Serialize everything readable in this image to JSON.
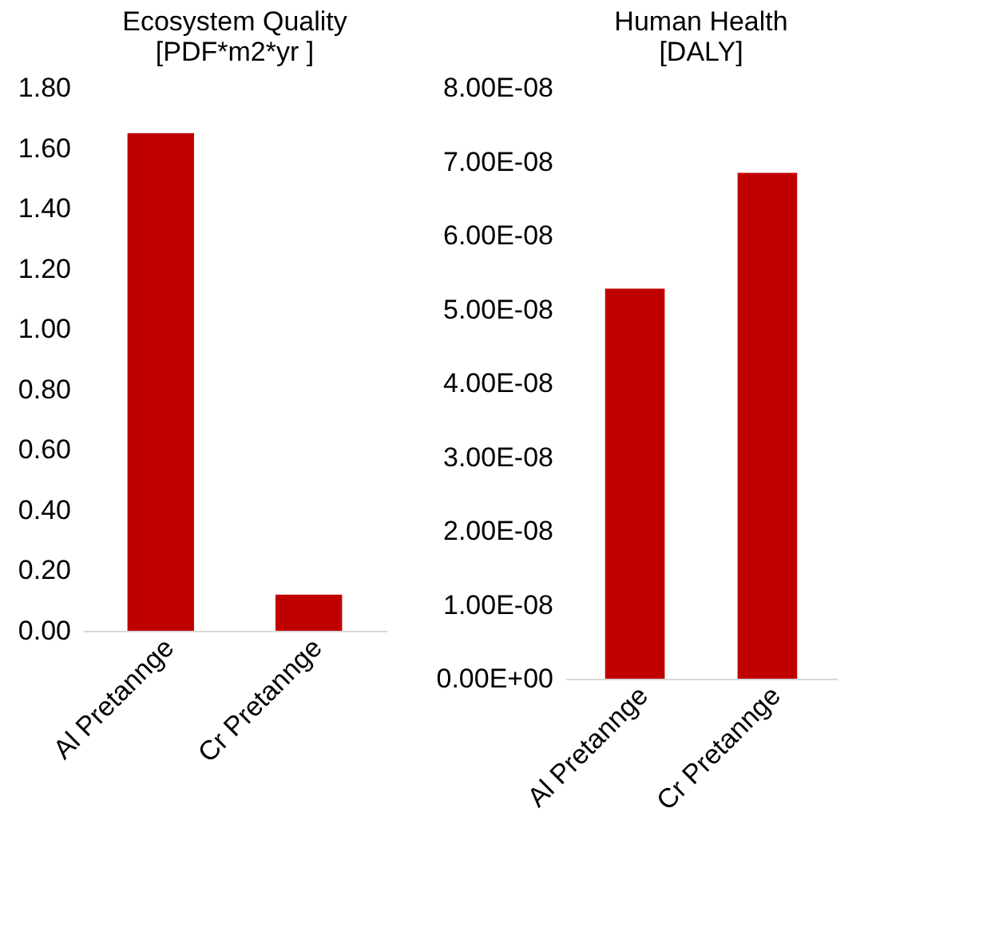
{
  "chart_data": [
    {
      "type": "bar",
      "title": "Ecosystem Quality\n[PDF*m2*yr ]",
      "categories": [
        "Al Pretannge",
        "Cr Pretannge"
      ],
      "values": [
        1.65,
        0.12
      ],
      "color": "#c00000",
      "ylim": [
        0,
        1.8
      ],
      "yticks": [
        {
          "value": 0,
          "label": "0.00"
        },
        {
          "value": 0.2,
          "label": "0.20"
        },
        {
          "value": 0.4,
          "label": "0.40"
        },
        {
          "value": 0.6,
          "label": "0.60"
        },
        {
          "value": 0.8,
          "label": "0.80"
        },
        {
          "value": 1.0,
          "label": "1.00"
        },
        {
          "value": 1.2,
          "label": "1.20"
        },
        {
          "value": 1.4,
          "label": "1.40"
        },
        {
          "value": 1.6,
          "label": "1.60"
        },
        {
          "value": 1.8,
          "label": "1.80"
        }
      ],
      "grid": false
    },
    {
      "type": "bar",
      "title": "Human Health\n[DALY]",
      "categories": [
        "Al Pretannge",
        "Cr Pretannge"
      ],
      "values": [
        5.28e-08,
        6.85e-08
      ],
      "color": "#c00000",
      "ylim": [
        0,
        8e-08
      ],
      "yticks": [
        {
          "value": 0,
          "label": "0.00E+00"
        },
        {
          "value": 1e-08,
          "label": "1.00E-08"
        },
        {
          "value": 2e-08,
          "label": "2.00E-08"
        },
        {
          "value": 3e-08,
          "label": "3.00E-08"
        },
        {
          "value": 4e-08,
          "label": "4.00E-08"
        },
        {
          "value": 5e-08,
          "label": "5.00E-08"
        },
        {
          "value": 6e-08,
          "label": "6.00E-08"
        },
        {
          "value": 7e-08,
          "label": "7.00E-08"
        },
        {
          "value": 8e-08,
          "label": "8.00E-08"
        }
      ],
      "grid": false
    }
  ]
}
